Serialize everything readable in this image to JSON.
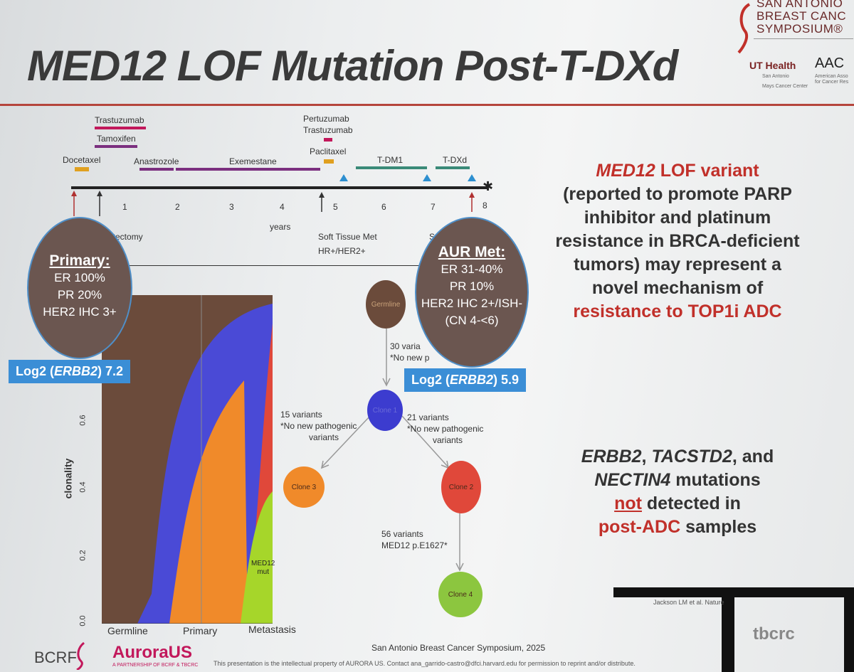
{
  "slide": {
    "title": "MED12 LOF Mutation Post-T-DXd"
  },
  "logo_sabcs": {
    "line1": "SAN ANTONIO",
    "line2": "BREAST CANC",
    "line3": "SYMPOSIUM®",
    "ut_health": "UT Health",
    "ut_sub1": "San Antonio",
    "ut_sub2": "Mays Cancer Center",
    "aacr": "AAC",
    "aacr_sub": "American Asso for Cancer Res"
  },
  "timeline": {
    "drugs": {
      "trastuzumab": "Trastuzumab",
      "tamoxifen": "Tamoxifen",
      "docetaxel": "Docetaxel",
      "anastrozole": "Anastrozole",
      "exemestane": "Exemestane",
      "pertuzumab": "Pertuzumab",
      "trastuzumab2": "Trastuzumab",
      "paclitaxel": "Paclitaxel",
      "tdm1": "T-DM1",
      "tdxd": "T-DXd"
    },
    "ticks": [
      "1",
      "2",
      "3",
      "4",
      "5",
      "6",
      "7",
      "8"
    ],
    "unit": "years",
    "events": {
      "mastectomy": "astectomy",
      "soft_tissue": "Soft Tissue Met",
      "soft_tissue_sub": "HR+/HER2+",
      "s_label": "S"
    },
    "colors": {
      "chemo": "#e0a020",
      "her2": "#c2185b",
      "endocrine": "#7b2f7f",
      "adc": "#3a8a78",
      "axis": "#222222"
    }
  },
  "primary": {
    "heading": "Primary:",
    "lines": [
      "ER 100%",
      "PR 20%",
      "HER2 IHC 3+"
    ],
    "log2_prefix": "Log2 (",
    "log2_gene": "ERBB2",
    "log2_value": ") 7.2"
  },
  "aur": {
    "heading": "AUR Met:",
    "lines": [
      "ER 31-40%",
      "PR 10%",
      "HER2 IHC 2+/ISH-",
      "(CN 4-<6)"
    ],
    "log2_prefix": "Log2 (",
    "log2_gene": "ERBB2",
    "log2_value": ") 5.9"
  },
  "fishplot": {
    "ylabel": "clonality",
    "yticks": [
      "0.0",
      "0.2",
      "0.4",
      "0.6"
    ],
    "xticks": [
      "Germline",
      "Primary",
      "Metastasis"
    ],
    "annotation": [
      "MED12",
      "mut"
    ],
    "colors": {
      "germline": "#6b4b3b",
      "clone1": "#4a4ad6",
      "clone2": "#e0483a",
      "clone3": "#f08a2a",
      "clone4": "#a6d62a"
    }
  },
  "tree": {
    "nodes": {
      "germline": "Germline",
      "clone1": "Clone 1",
      "clone2": "Clone 2",
      "clone3": "Clone 3",
      "clone4": "Clone 4"
    },
    "edges": {
      "e1_a": "30 varia",
      "e1_b": "*No new p",
      "e2_a": "15 variants",
      "e2_b": "*No new pathogenic",
      "e2_c": "variants",
      "e3_a": "21 variants",
      "e3_b": "*No new pathogenic",
      "e3_c": "variants",
      "e4_a": "56 variants",
      "e4_b": "MED12 p.E1627*"
    }
  },
  "right_panel": {
    "p1_red": "MED12",
    "p1_rest": " LOF variant",
    "p2": "(reported to promote PARP",
    "p3": "inhibitor and platinum",
    "p4": "resistance in BRCA-deficient",
    "p5": "tumors) may represent a",
    "p6": "novel mechanism of",
    "p7": "resistance to TOP1i ADC",
    "q1_a": "ERBB2",
    "q1_b": ", ",
    "q1_c": "TACSTD2",
    "q1_d": ", and",
    "q2_a": "NECTIN4",
    "q2_b": " mutations",
    "q3_a": "not",
    "q3_b": " detected in",
    "q4_a": "post-ADC",
    "q4_b": " samples"
  },
  "footer": {
    "symposium": "San Antonio Breast Cancer Symposium, 2025",
    "copyright_a": "This presentation is the intellectual property of AURORA US. Contact ",
    "email": "ana_garrido-castro@dfci.harvard.edu",
    "copyright_b": " for permission to reprint and/or distribute.",
    "bcrf": "BCRF",
    "aurora": "AuroraUS",
    "aurora_sub": "A PARTNERSHIP OF BCRF & TBCRC",
    "tbcrc": "tbcrc",
    "citation": "Jackson LM et al. Nature"
  }
}
